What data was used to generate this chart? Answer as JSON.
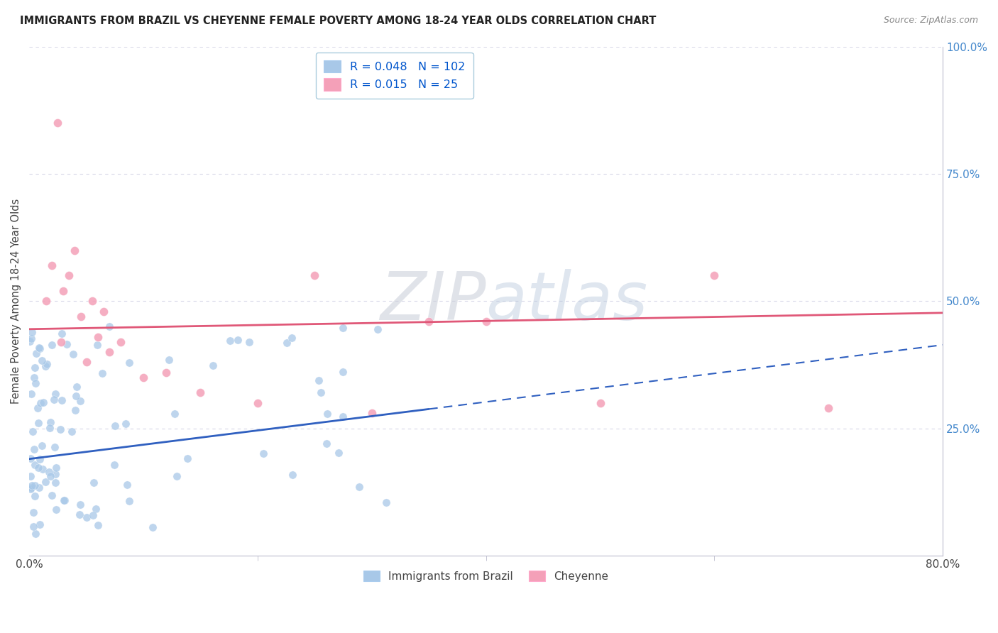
{
  "title": "IMMIGRANTS FROM BRAZIL VS CHEYENNE FEMALE POVERTY AMONG 18-24 YEAR OLDS CORRELATION CHART",
  "source": "Source: ZipAtlas.com",
  "ylabel": "Female Poverty Among 18-24 Year Olds",
  "legend_blue": {
    "R": 0.048,
    "N": 102,
    "label": "Immigrants from Brazil"
  },
  "legend_pink": {
    "R": 0.015,
    "N": 25,
    "label": "Cheyenne"
  },
  "blue_color": "#A8C8E8",
  "pink_color": "#F4A0B8",
  "trend_blue_color": "#3060C0",
  "trend_pink_color": "#E05878",
  "legend_text_color": "#0055CC",
  "right_axis_color": "#4488CC",
  "watermark": "ZIPatlas",
  "watermark_color_zip": "#C0C8D8",
  "watermark_color_atlas": "#B0C0D8",
  "xlim": [
    0,
    80
  ],
  "ylim": [
    0,
    100
  ],
  "figsize": [
    14.06,
    8.92
  ],
  "dpi": 100,
  "grid_color": "#D8D8E8",
  "spine_color": "#BBBBCC",
  "blue_x_max_data": 35,
  "pink_trend_intercept": 44.5,
  "pink_trend_slope": 0.04,
  "blue_trend_intercept": 19.0,
  "blue_trend_slope": 0.28
}
